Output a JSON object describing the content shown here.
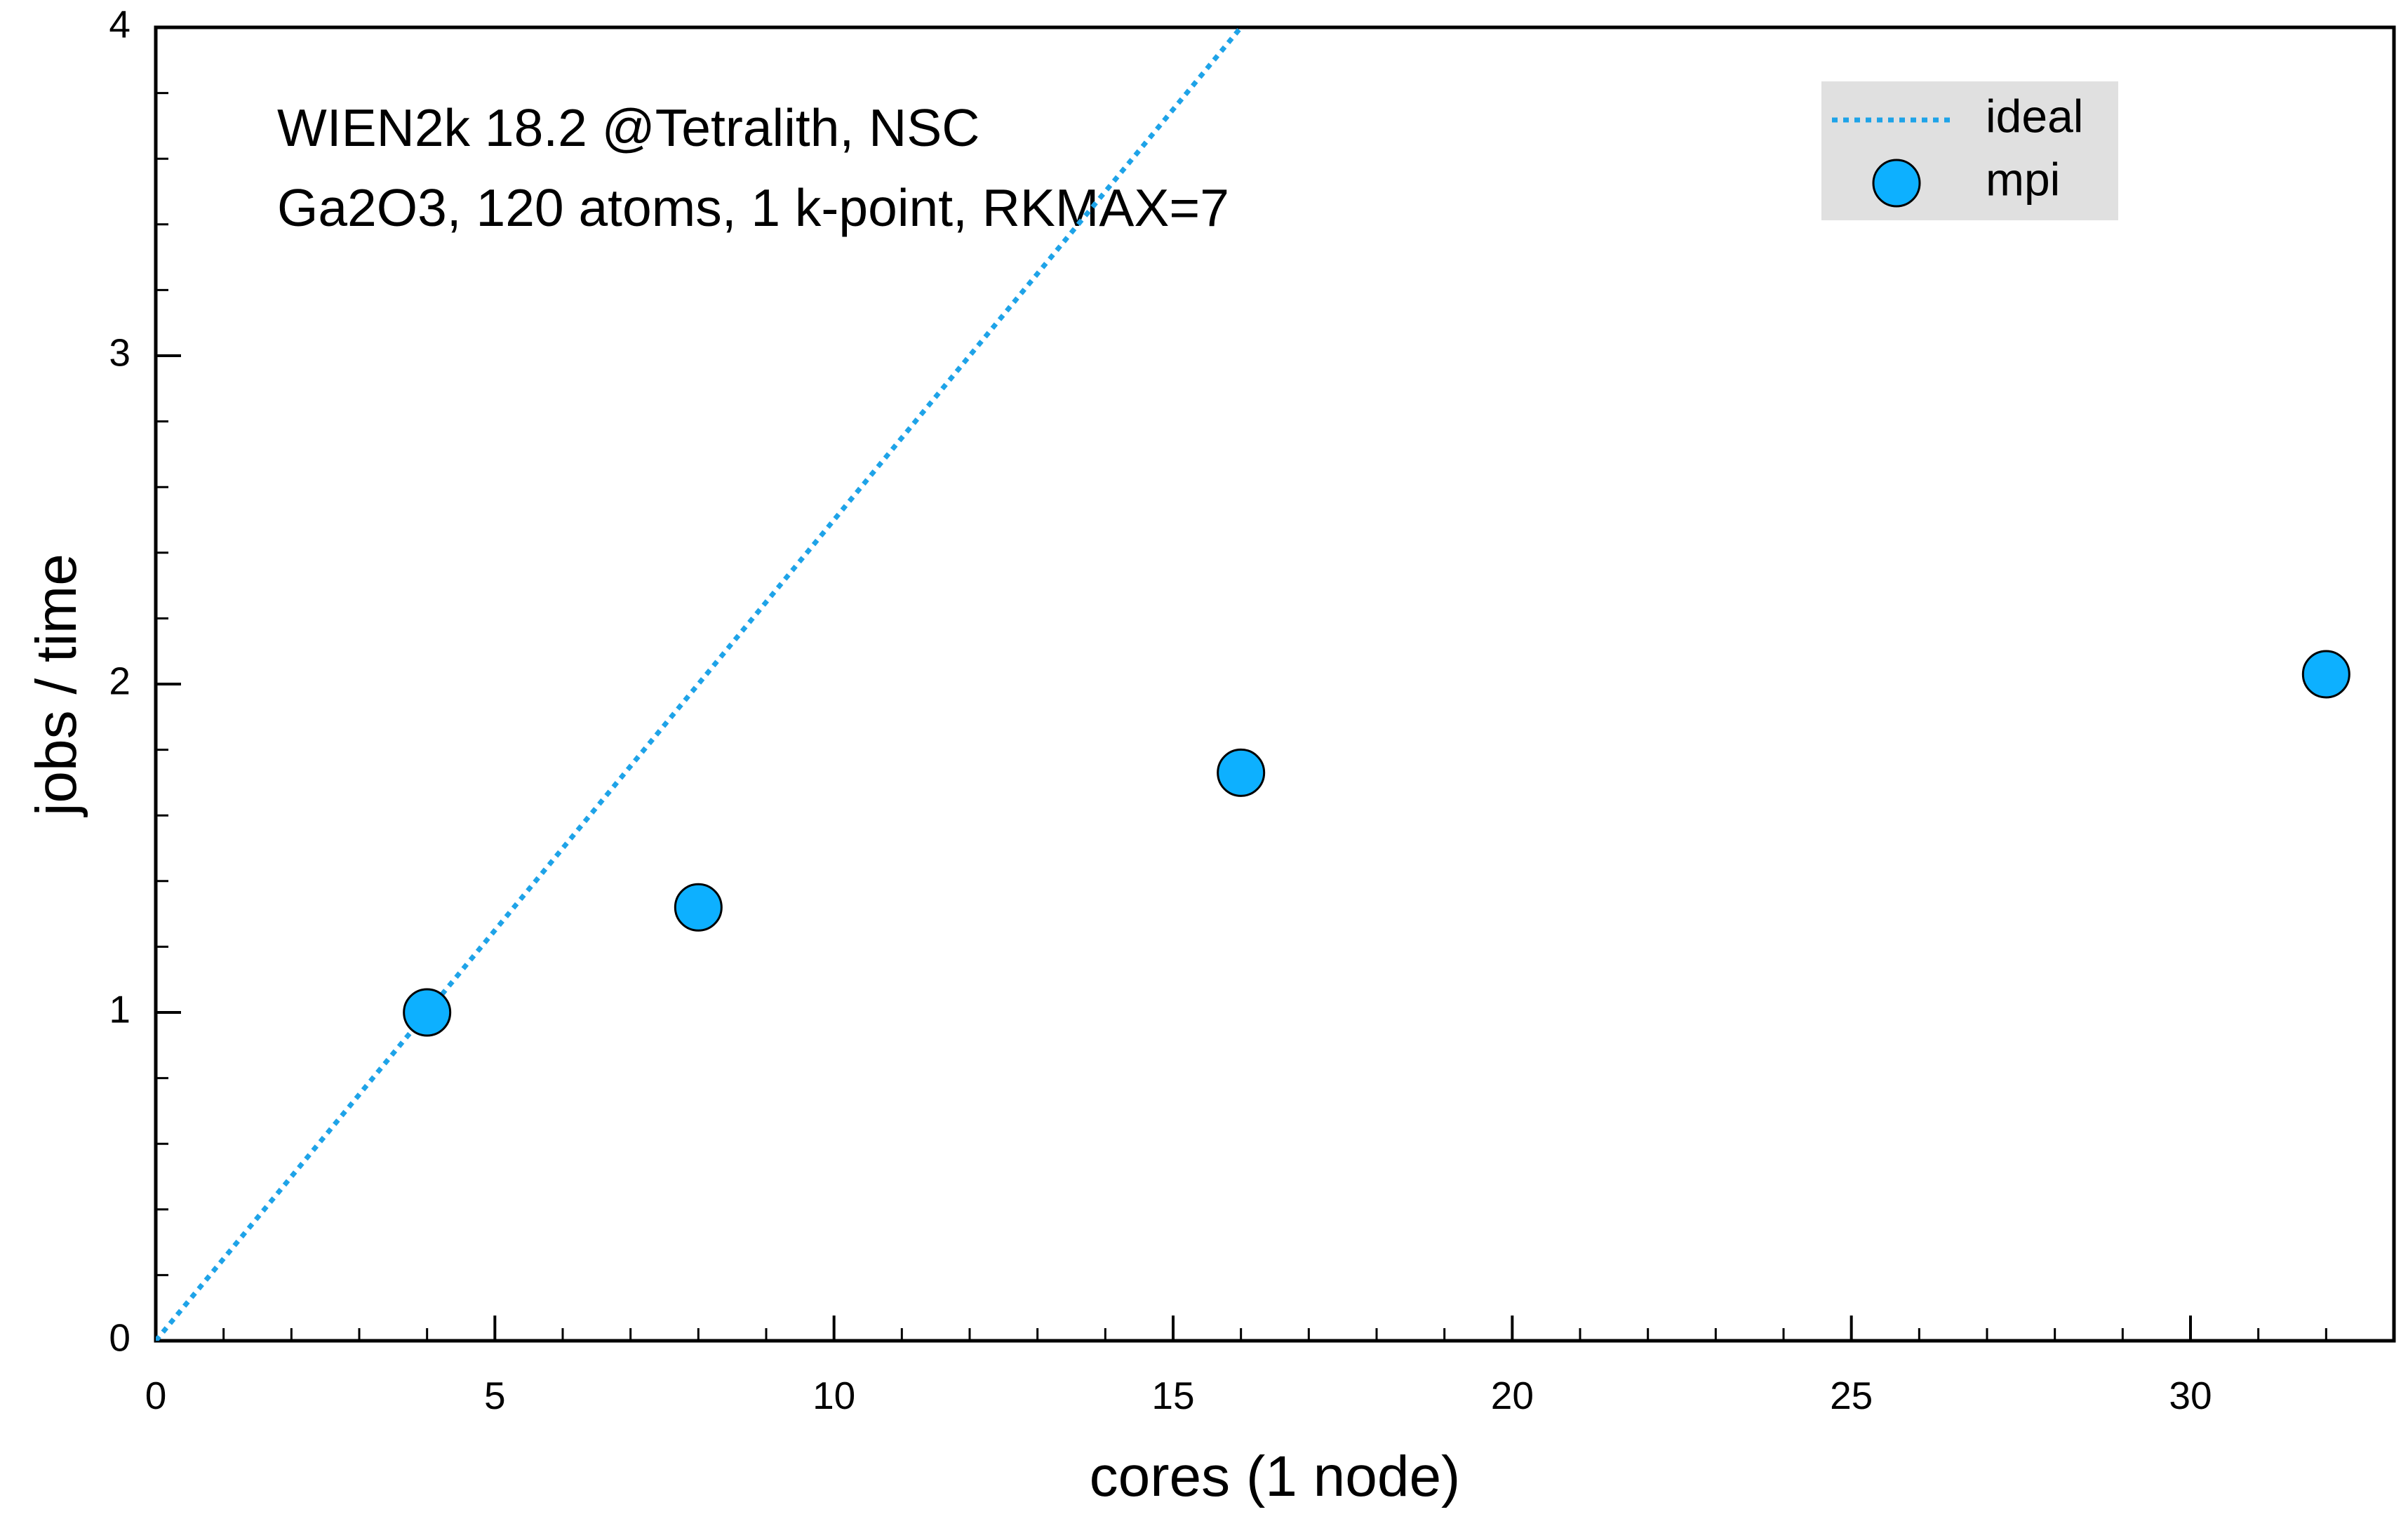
{
  "chart_data": {
    "type": "scatter",
    "annotations": [
      "WIEN2k 18.2 @Tetralith, NSC",
      "Ga2O3, 120 atoms, 1 k-point, RKMAX=7"
    ],
    "x_label": "cores (1 node)",
    "y_label": "jobs / time",
    "xlim": [
      0,
      33
    ],
    "xticks": [
      0,
      5,
      10,
      15,
      20,
      25,
      30
    ],
    "ylim": [
      0,
      4
    ],
    "yticks": [
      0,
      1,
      2,
      3,
      4
    ],
    "legend": "upper right",
    "series": [
      {
        "name": "ideal",
        "type": "line",
        "style": "dotted",
        "color": "#1ea3e8",
        "x": [
          0,
          16
        ],
        "values": [
          0,
          4
        ]
      },
      {
        "name": "mpi",
        "type": "scatter",
        "color": "#0db0ff",
        "x": [
          4,
          8,
          16,
          32
        ],
        "values": [
          1.0,
          1.32,
          1.73,
          2.03
        ]
      }
    ]
  }
}
